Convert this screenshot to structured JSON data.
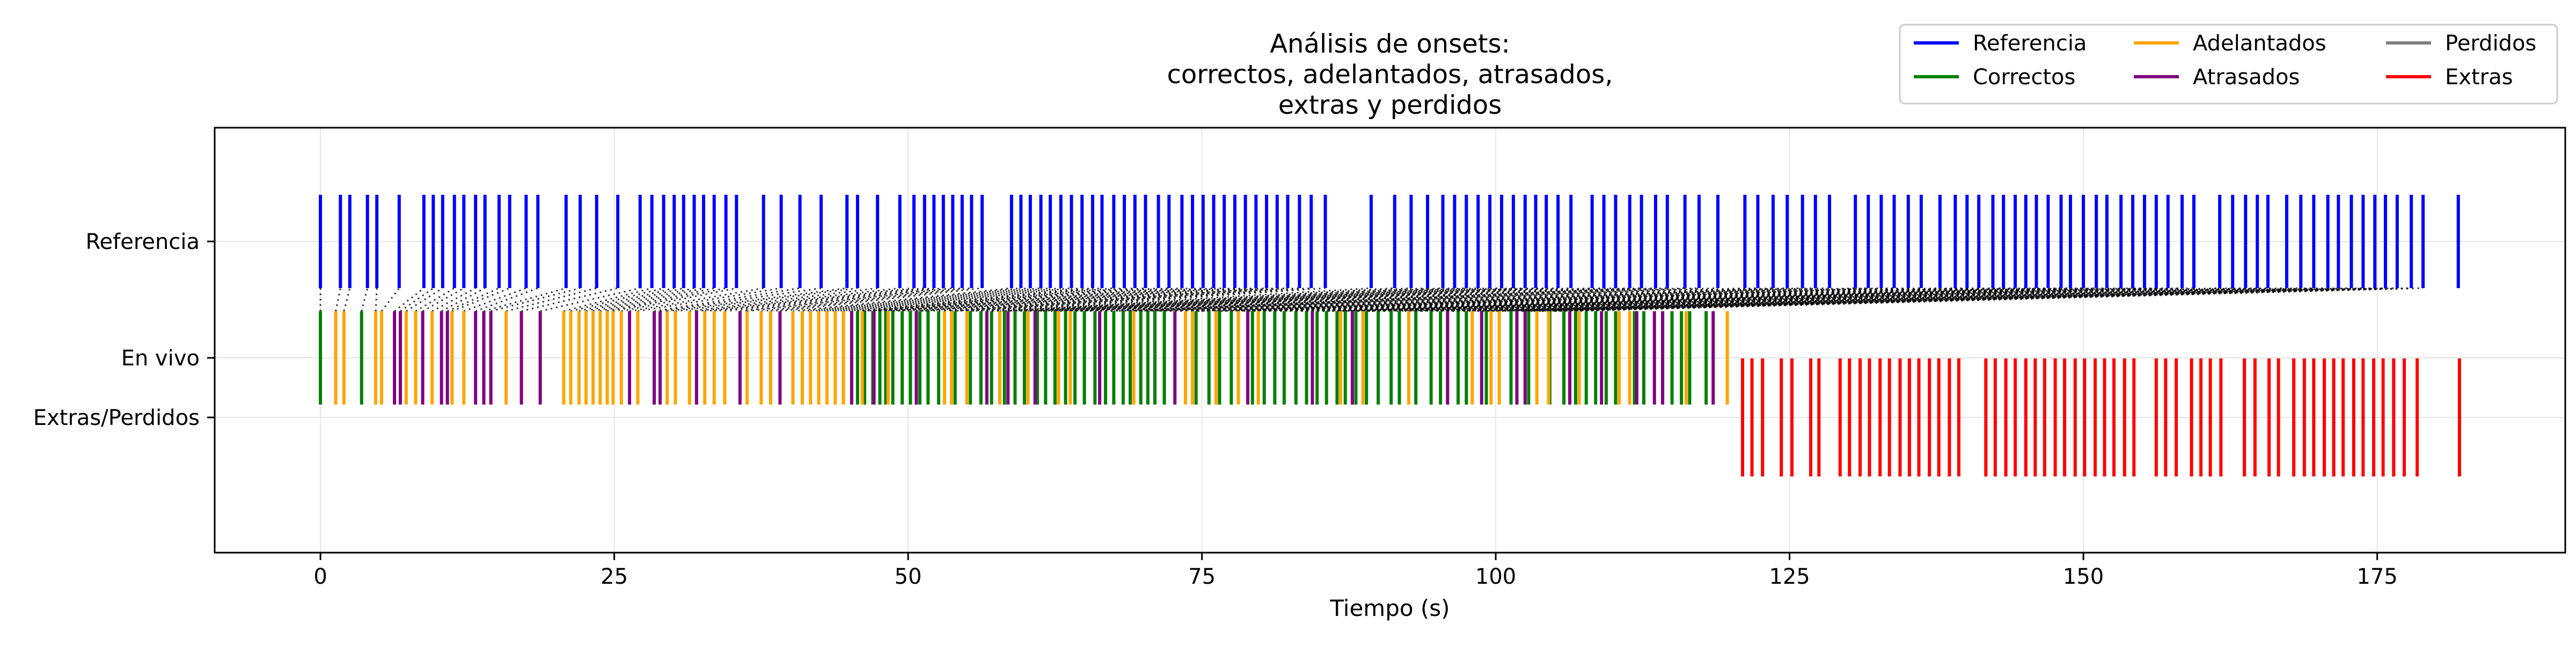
{
  "chart_data": {
    "type": "event_raster",
    "title": [
      "Análisis de onsets:",
      "correctos, adelantados, atrasados,",
      "extras y perdidos"
    ],
    "xlabel": "Tiempo (s)",
    "ylabel": "",
    "xlim": [
      -9,
      191
    ],
    "x_ticks": [
      0,
      25,
      50,
      75,
      100,
      125,
      150,
      175
    ],
    "y_ticks": [
      "Referencia",
      "En vivo",
      "Extras/Perdidos"
    ],
    "grid": true,
    "legend_position": "upper-right",
    "legend": [
      {
        "label": "Referencia",
        "color": "#0000ff"
      },
      {
        "label": "Correctos",
        "color": "#008000"
      },
      {
        "label": "Adelantados",
        "color": "#ffa500"
      },
      {
        "label": "Atrasados",
        "color": "#800080"
      },
      {
        "label": "Perdidos",
        "color": "#808080"
      },
      {
        "label": "Extras",
        "color": "#ff0000"
      }
    ],
    "colors": {
      "referencia": "#0000ff",
      "correctos": "#008000",
      "adelantados": "#ffa500",
      "atrasados": "#800080",
      "perdidos": "#808080",
      "extras": "#ff0000",
      "link": "#000000"
    },
    "series": [
      {
        "name": "Referencia",
        "row": "Referencia",
        "values": [
          0,
          1.7,
          2.5,
          4,
          4.8,
          6.7,
          8.8,
          9.6,
          10.4,
          11.4,
          12.2,
          13.2,
          14,
          15.2,
          16.1,
          17.5,
          18.5,
          20.9,
          22.1,
          23.5,
          25.3,
          27.2,
          28.2,
          29.2,
          30.1,
          30.9,
          31.8,
          32.6,
          33.5,
          34.5,
          35.4,
          37.7,
          39.2,
          40.8,
          42.6,
          44.8,
          45.7,
          47.4,
          49.3,
          50.5,
          51.4,
          52.2,
          53,
          53.8,
          54.6,
          55.4,
          56.3,
          58.8,
          59.6,
          60.4,
          61.3,
          62.1,
          63,
          63.9,
          64.8,
          65.7,
          66.5,
          67.5,
          68.4,
          69.3,
          70.2,
          71.3,
          72.2,
          73.3,
          74.2,
          75.1,
          76,
          76.9,
          77.8,
          78.7,
          79.6,
          80.5,
          81.4,
          82.3,
          83.3,
          84.3,
          85.5,
          89.4,
          91.4,
          92.8,
          94.2,
          95.5,
          96.5,
          97.5,
          98.5,
          99.5,
          100.5,
          101.5,
          102.5,
          103.4,
          104.3,
          105.3,
          106.4,
          108.2,
          109.2,
          110.2,
          111.4,
          112.4,
          113.6,
          114.6,
          116.1,
          117.3,
          118.9,
          121.2,
          122.3,
          123.6,
          124.8,
          126.1,
          127.2,
          128.4,
          130.6,
          131.7,
          132.8,
          133.9,
          135.1,
          136.2,
          137.8,
          139.1,
          140.1,
          141.1,
          142.3,
          143.2,
          144.2,
          145.1,
          146,
          147,
          148.1,
          148.9,
          150,
          151.1,
          152,
          153.2,
          154.2,
          155.2,
          156.2,
          157.2,
          158.4,
          159.4,
          161.6,
          162.7,
          163.8,
          164.8,
          165.7,
          167.3,
          168.5,
          169.6,
          170.8,
          171.7,
          172.8,
          173.8,
          174.8,
          175.7,
          176.7,
          177.9,
          178.9,
          181.9
        ]
      },
      {
        "name": "Correctos",
        "row": "En vivo",
        "values": [
          0,
          3.5,
          45.7,
          46.3,
          47,
          47.6,
          48.1,
          48.7,
          49.5,
          50.2,
          51,
          51.7,
          52.6,
          54,
          55.3,
          56.2,
          57.1,
          58.2,
          59.1,
          59.9,
          61,
          61.7,
          62.5,
          63.4,
          64.2,
          65,
          65.9,
          66.8,
          67.5,
          68.3,
          68.9,
          69.8,
          70.4,
          71,
          71.8,
          74.5,
          75.6,
          76.5,
          77.5,
          79.3,
          80.3,
          81.2,
          82,
          83,
          83.9,
          84.8,
          85.6,
          86.5,
          87.2,
          88.1,
          89,
          90,
          91.1,
          91.8,
          93.2,
          94.5,
          95.3,
          96.8,
          97.5,
          99.2,
          101.3,
          102.8,
          104.6,
          105.8,
          106.8,
          107.7,
          108.5,
          109.4,
          110.2,
          111.8,
          112.6,
          115,
          115.8,
          116.5,
          117.9
        ]
      },
      {
        "name": "Adelantados",
        "row": "En vivo",
        "values": [
          1.3,
          2,
          4.7,
          5.2,
          7.3,
          8.1,
          9.5,
          11.2,
          12.2,
          15.8,
          20.7,
          21.3,
          22,
          22.6,
          23.2,
          23.8,
          24.4,
          24.9,
          25.6,
          27,
          29.5,
          30.2,
          31.4,
          32.7,
          33.5,
          34.4,
          36.3,
          37.5,
          38.3,
          40.2,
          41,
          41.7,
          42.4,
          43.1,
          43.8,
          44.5,
          46.1,
          48.3,
          53.1,
          53.7,
          55,
          57.8,
          60.2,
          62.8,
          63.8,
          69.2,
          73.6,
          74.2,
          76.2,
          78.1,
          79.8,
          86.8,
          88.7,
          92.6,
          98,
          99.6,
          100.3,
          103.5,
          104.5,
          107.1,
          110.5,
          111.4,
          116.2,
          119.7
        ]
      },
      {
        "name": "Atrasados",
        "row": "En vivo",
        "values": [
          6.3,
          6.8,
          8.7,
          10.3,
          10.8,
          13.2,
          13.9,
          14.5,
          17.1,
          18.7,
          26.3,
          28.4,
          28.9,
          32,
          35.7,
          39.1,
          45.2,
          47.1,
          50.7,
          56.7,
          58.5,
          60.8,
          66.3,
          72.7,
          78.9,
          84.4,
          87.8,
          95.9,
          98.8,
          101.8,
          102.5,
          106.3,
          109,
          112,
          113.5,
          114.2,
          118.5
        ]
      },
      {
        "name": "Extras",
        "row": "Extras/Perdidos",
        "values": [
          121,
          121.8,
          122.7,
          124.3,
          125.2,
          126.8,
          127.5,
          129.3,
          130.1,
          131,
          131.8,
          132.7,
          133.5,
          134.4,
          135.2,
          136,
          136.9,
          137.7,
          138.6,
          139.4,
          141.7,
          142.5,
          143.4,
          144.2,
          145.1,
          145.9,
          146.7,
          147.6,
          148.4,
          149.3,
          150.1,
          151,
          151.8,
          152.6,
          153.5,
          154.3,
          156.2,
          157,
          157.9,
          159.2,
          160,
          160.8,
          161.7,
          163.7,
          164.6,
          165.8,
          166.6,
          167.9,
          168.8,
          169.6,
          170.5,
          171.3,
          172.1,
          173,
          173.8,
          174.7,
          175.5,
          176.4,
          177.3,
          178.4,
          182
        ]
      }
    ],
    "links_note": "dotted lines connect each En vivo onset with its matched Referencia onset",
    "links": [
      [
        0,
        0
      ],
      [
        1.3,
        1.7
      ],
      [
        2,
        2.5
      ],
      [
        3.5,
        4
      ],
      [
        4.7,
        4.8
      ],
      [
        5.2,
        6.7
      ],
      [
        6.3,
        8.8
      ],
      [
        6.8,
        9.6
      ],
      [
        7.3,
        10.4
      ],
      [
        8.1,
        11.4
      ],
      [
        8.7,
        12.2
      ],
      [
        9.5,
        13.2
      ],
      [
        10.3,
        14
      ],
      [
        10.8,
        15.2
      ],
      [
        11.2,
        16.1
      ],
      [
        12.2,
        17.5
      ],
      [
        13.2,
        18.5
      ],
      [
        13.9,
        20.9
      ],
      [
        14.5,
        22.1
      ],
      [
        15.8,
        23.5
      ],
      [
        17.1,
        25.3
      ],
      [
        18.7,
        27.2
      ],
      [
        20.7,
        28.2
      ],
      [
        21.3,
        29.2
      ],
      [
        22,
        30.1
      ],
      [
        22.6,
        30.9
      ],
      [
        23.2,
        31.8
      ],
      [
        23.8,
        32.6
      ],
      [
        24.4,
        33.5
      ],
      [
        24.9,
        34.5
      ],
      [
        25.6,
        35.4
      ],
      [
        26.3,
        37.7
      ],
      [
        27,
        39.2
      ],
      [
        28.4,
        40.8
      ],
      [
        28.9,
        42.6
      ],
      [
        29.5,
        44.8
      ],
      [
        30.2,
        45.7
      ],
      [
        31.4,
        47.4
      ],
      [
        32,
        49.3
      ],
      [
        32.7,
        50.5
      ],
      [
        33.5,
        51.4
      ],
      [
        34.4,
        52.2
      ],
      [
        35.7,
        53
      ],
      [
        36.3,
        53.8
      ],
      [
        37.5,
        54.6
      ],
      [
        38.3,
        55.4
      ],
      [
        39.1,
        56.3
      ],
      [
        40.2,
        58.8
      ],
      [
        41,
        59.6
      ],
      [
        41.7,
        60.4
      ],
      [
        42.4,
        61.3
      ],
      [
        43.1,
        62.1
      ],
      [
        43.8,
        63
      ],
      [
        44.5,
        63.9
      ],
      [
        45.2,
        64.8
      ],
      [
        45.7,
        65.7
      ],
      [
        46.1,
        66.5
      ],
      [
        46.3,
        67.5
      ],
      [
        47,
        68.4
      ],
      [
        47.1,
        69.3
      ],
      [
        47.6,
        70.2
      ],
      [
        48.1,
        71.3
      ],
      [
        48.3,
        72.2
      ],
      [
        48.7,
        73.3
      ],
      [
        49.5,
        74.2
      ],
      [
        50.2,
        75.1
      ],
      [
        50.7,
        76
      ],
      [
        51,
        76.9
      ],
      [
        51.7,
        77.8
      ],
      [
        52.6,
        78.7
      ],
      [
        53.1,
        79.6
      ],
      [
        53.7,
        80.5
      ],
      [
        54,
        81.4
      ],
      [
        55,
        82.3
      ],
      [
        55.3,
        83.3
      ],
      [
        56.2,
        84.3
      ],
      [
        56.7,
        85.5
      ],
      [
        57.1,
        89.4
      ],
      [
        57.8,
        91.4
      ],
      [
        58.2,
        92.8
      ],
      [
        58.5,
        94.2
      ],
      [
        59.1,
        95.5
      ],
      [
        59.9,
        96.5
      ],
      [
        60.2,
        97.5
      ],
      [
        60.8,
        98.5
      ],
      [
        61,
        99.5
      ],
      [
        61.7,
        100.5
      ],
      [
        62.5,
        101.5
      ],
      [
        62.8,
        102.5
      ],
      [
        63.4,
        103.4
      ],
      [
        63.8,
        104.3
      ],
      [
        64.2,
        105.3
      ],
      [
        65,
        106.4
      ],
      [
        65.9,
        108.2
      ],
      [
        66.3,
        109.2
      ],
      [
        66.8,
        110.2
      ],
      [
        67.5,
        111.4
      ],
      [
        68.3,
        112.4
      ],
      [
        68.9,
        113.6
      ],
      [
        69.2,
        114.6
      ],
      [
        69.8,
        116.1
      ],
      [
        70.4,
        117.3
      ],
      [
        71,
        118.9
      ],
      [
        71.8,
        121.2
      ],
      [
        72.7,
        122.3
      ],
      [
        73.6,
        123.6
      ],
      [
        74.2,
        124.8
      ],
      [
        74.5,
        126.1
      ],
      [
        75.6,
        127.2
      ],
      [
        76.2,
        128.4
      ],
      [
        76.5,
        130.6
      ],
      [
        77.5,
        131.7
      ],
      [
        78.1,
        132.8
      ],
      [
        78.9,
        133.9
      ],
      [
        79.3,
        135.1
      ],
      [
        79.8,
        136.2
      ],
      [
        80.3,
        137.8
      ],
      [
        81.2,
        139.1
      ],
      [
        82,
        140.1
      ],
      [
        83,
        141.1
      ],
      [
        83.9,
        142.3
      ],
      [
        84.4,
        143.2
      ],
      [
        84.8,
        144.2
      ],
      [
        85.6,
        145.1
      ],
      [
        86.5,
        146
      ],
      [
        86.8,
        147
      ],
      [
        87.2,
        148.1
      ],
      [
        87.8,
        148.9
      ],
      [
        88.1,
        150
      ],
      [
        88.7,
        151.1
      ],
      [
        89,
        152
      ],
      [
        90,
        153.2
      ],
      [
        91.1,
        154.2
      ],
      [
        91.8,
        155.2
      ],
      [
        92.6,
        156.2
      ],
      [
        93.2,
        157.2
      ],
      [
        94.5,
        158.4
      ],
      [
        95.3,
        159.4
      ],
      [
        95.9,
        161.6
      ],
      [
        96.8,
        162.7
      ],
      [
        97.5,
        163.8
      ],
      [
        98,
        164.8
      ],
      [
        98.8,
        165.7
      ],
      [
        99.2,
        167.3
      ],
      [
        99.6,
        168.5
      ],
      [
        100.3,
        169.6
      ],
      [
        101.3,
        170.8
      ],
      [
        101.8,
        171.7
      ],
      [
        102.5,
        172.8
      ],
      [
        102.8,
        173.8
      ],
      [
        103.5,
        174.8
      ],
      [
        104.5,
        175.7
      ],
      [
        104.6,
        176.7
      ],
      [
        105.8,
        177.9
      ],
      [
        106.3,
        178.9
      ]
    ]
  }
}
